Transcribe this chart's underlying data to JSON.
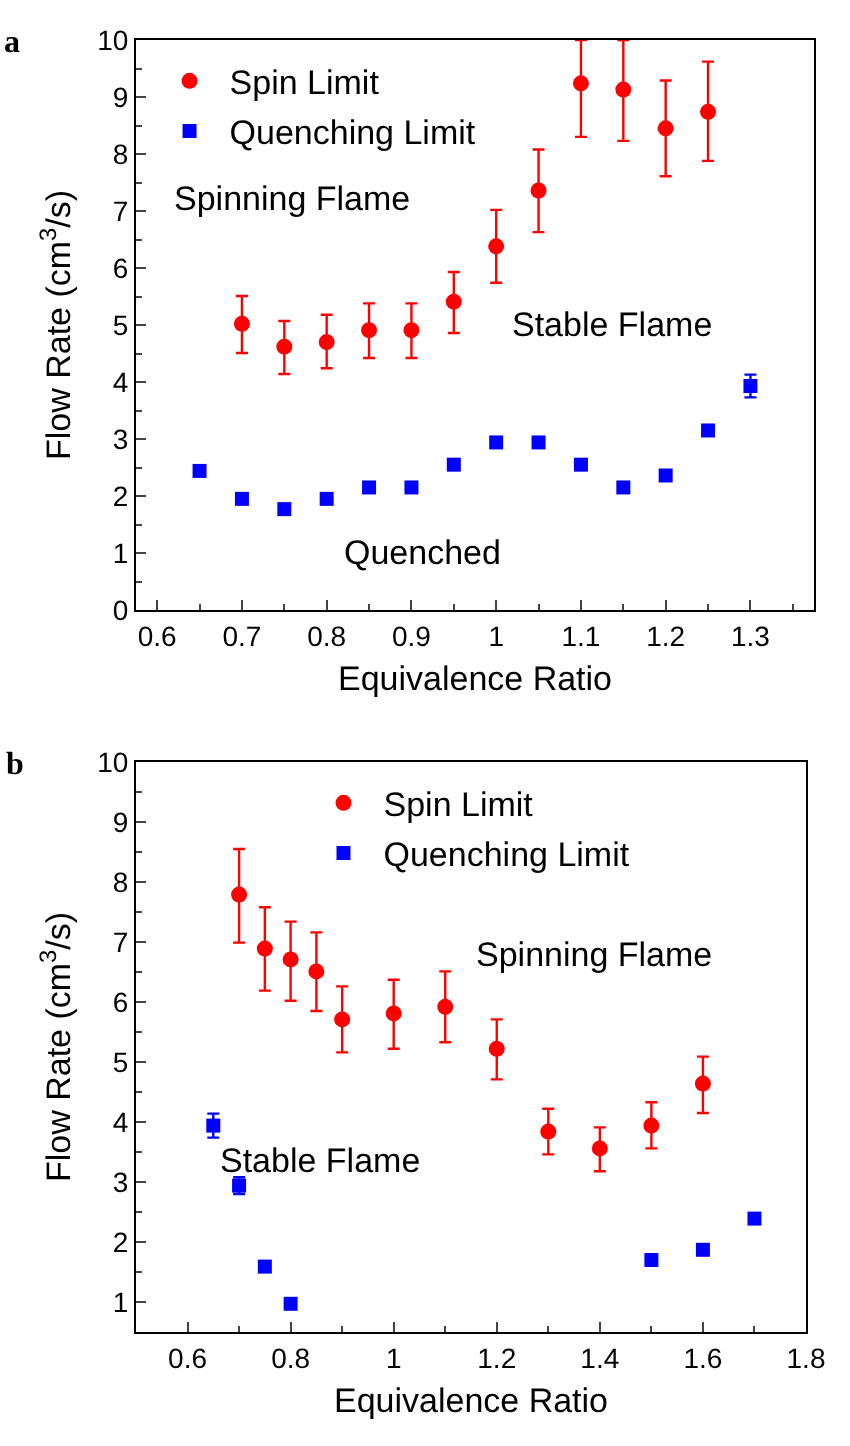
{
  "chart_data": [
    {
      "type": "scatter",
      "title": "a",
      "xlabel": "Equivalence Ratio",
      "ylabel": "Flow Rate (cm$^{3}$/s)",
      "xlim": [
        0.575,
        1.375
      ],
      "xticks": [
        0.6,
        0.7,
        0.8,
        0.9,
        1.0,
        1.1,
        1.2,
        1.3
      ],
      "ylim": [
        0,
        10
      ],
      "yticks": [
        0,
        1,
        2,
        3,
        4,
        5,
        6,
        7,
        8,
        9,
        10
      ],
      "grid": false,
      "legend": "top left",
      "annotations": [
        "Spinning Flame",
        "Stable Flame",
        "Quenched"
      ],
      "series": [
        {
          "name": "Spin Limit",
          "color": "#ff0000",
          "marker": "circle",
          "x": [
            0.7,
            0.75,
            0.8,
            0.85,
            0.9,
            0.95,
            1.0,
            1.05,
            1.1,
            1.15,
            1.2,
            1.25
          ],
          "values": [
            5.02,
            4.62,
            4.7,
            4.91,
            4.91,
            5.41,
            6.38,
            7.36,
            9.24,
            9.13,
            8.45,
            8.74
          ],
          "errors": [
            [
              4.51,
              5.51
            ],
            [
              4.14,
              5.07
            ],
            [
              4.24,
              5.18
            ],
            [
              4.42,
              5.38
            ],
            [
              4.42,
              5.38
            ],
            [
              4.86,
              5.93
            ],
            [
              5.74,
              7.02
            ],
            [
              6.63,
              8.08
            ],
            [
              8.3,
              10
            ],
            [
              8.23,
              10
            ],
            [
              7.61,
              9.29
            ],
            [
              7.88,
              9.62
            ]
          ]
        },
        {
          "name": "Quenching Limit",
          "color": "#0000ff",
          "marker": "square",
          "x": [
            0.65,
            0.7,
            0.75,
            0.8,
            0.85,
            0.9,
            0.95,
            1.0,
            1.05,
            1.1,
            1.15,
            1.2,
            1.25,
            1.3
          ],
          "values": [
            2.44,
            1.95,
            1.77,
            1.95,
            2.15,
            2.15,
            2.55,
            2.94,
            2.94,
            2.55,
            2.15,
            2.36,
            3.15,
            3.93
          ],
          "errors": [
            null,
            null,
            null,
            null,
            null,
            null,
            null,
            null,
            null,
            null,
            null,
            null,
            null,
            0.2
          ]
        }
      ]
    },
    {
      "type": "scatter",
      "title": "b",
      "xlabel": "Equivalence Ratio",
      "ylabel": "Flow Rate (cm$^{3}$/s)",
      "xlim": [
        0.5,
        1.8
      ],
      "xticks": [
        0.6,
        0.8,
        1.0,
        1.2,
        1.4,
        1.6,
        1.8
      ],
      "ylim": [
        0.5,
        10
      ],
      "yticks": [
        1,
        2,
        3,
        4,
        5,
        6,
        7,
        8,
        9,
        10
      ],
      "grid": false,
      "legend": "top",
      "annotations": [
        "Spinning Flame",
        "Stable Flame"
      ],
      "series": [
        {
          "name": "Spin Limit",
          "color": "#ff0000",
          "marker": "circle",
          "x": [
            0.7,
            0.75,
            0.8,
            0.85,
            0.9,
            1.0,
            1.1,
            1.2,
            1.3,
            1.4,
            1.5,
            1.6
          ],
          "values": [
            7.79,
            6.89,
            6.71,
            6.51,
            5.71,
            5.81,
            5.92,
            5.22,
            3.84,
            3.56,
            3.94,
            4.64
          ],
          "errors": [
            [
              6.99,
              8.55
            ],
            [
              6.19,
              7.58
            ],
            [
              6.02,
              7.34
            ],
            [
              5.85,
              7.16
            ],
            [
              5.16,
              6.26
            ],
            [
              5.22,
              6.37
            ],
            [
              5.33,
              6.51
            ],
            [
              4.71,
              5.71
            ],
            [
              3.46,
              4.22
            ],
            [
              3.18,
              3.91
            ],
            [
              3.56,
              4.33
            ],
            [
              4.15,
              5.09
            ]
          ]
        },
        {
          "name": "Quenching Limit",
          "color": "#0000ff",
          "marker": "square",
          "x": [
            0.65,
            0.7,
            0.75,
            0.8,
            1.5,
            1.6,
            1.7
          ],
          "values": [
            3.94,
            2.94,
            1.59,
            0.97,
            1.7,
            1.87,
            2.39
          ],
          "errors": [
            0.2,
            0.14,
            null,
            null,
            null,
            null,
            null
          ]
        }
      ]
    }
  ]
}
